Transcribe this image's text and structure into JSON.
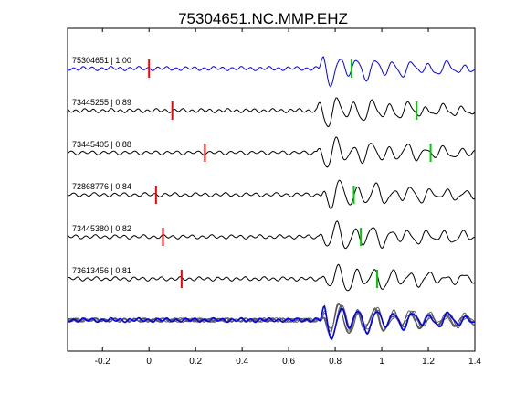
{
  "chart_data": {
    "type": "line",
    "title": "75304651.NC.MMP.EHZ",
    "xlim": [
      -0.35,
      1.4
    ],
    "x_ticks": [
      -0.2,
      0,
      0.2,
      0.4,
      0.6,
      0.8,
      1,
      1.2,
      1.4
    ],
    "x_tick_labels": [
      "-0.2",
      "0",
      "0.2",
      "0.4",
      "0.6",
      "0.8",
      "1",
      "1.2",
      "1.4"
    ],
    "grid": false,
    "traces": [
      {
        "label": "75304651 | 1.00",
        "pick_red": 0.0,
        "pick_green": 0.87,
        "onset": 0.73,
        "color": "#0000ff"
      },
      {
        "label": "73445255 | 0.89",
        "pick_red": 0.1,
        "pick_green": 1.15,
        "onset": 0.72,
        "color": "#000000"
      },
      {
        "label": "73445405 | 0.88",
        "pick_red": 0.24,
        "pick_green": 1.21,
        "onset": 0.72,
        "color": "#000000"
      },
      {
        "label": "72868776 | 0.84",
        "pick_red": 0.03,
        "pick_green": 0.88,
        "onset": 0.74,
        "color": "#000000"
      },
      {
        "label": "73445380 | 0.82",
        "pick_red": 0.06,
        "pick_green": 0.91,
        "onset": 0.73,
        "color": "#000000"
      },
      {
        "label": "73613456 | 0.81",
        "pick_red": 0.14,
        "pick_green": 0.98,
        "onset": 0.74,
        "color": "#000000"
      }
    ],
    "stack": {
      "overlay_colors": [
        "#555555",
        "#0000ff"
      ]
    },
    "pick_colors": {
      "red": "#ff0000",
      "green": "#00cc00"
    }
  }
}
